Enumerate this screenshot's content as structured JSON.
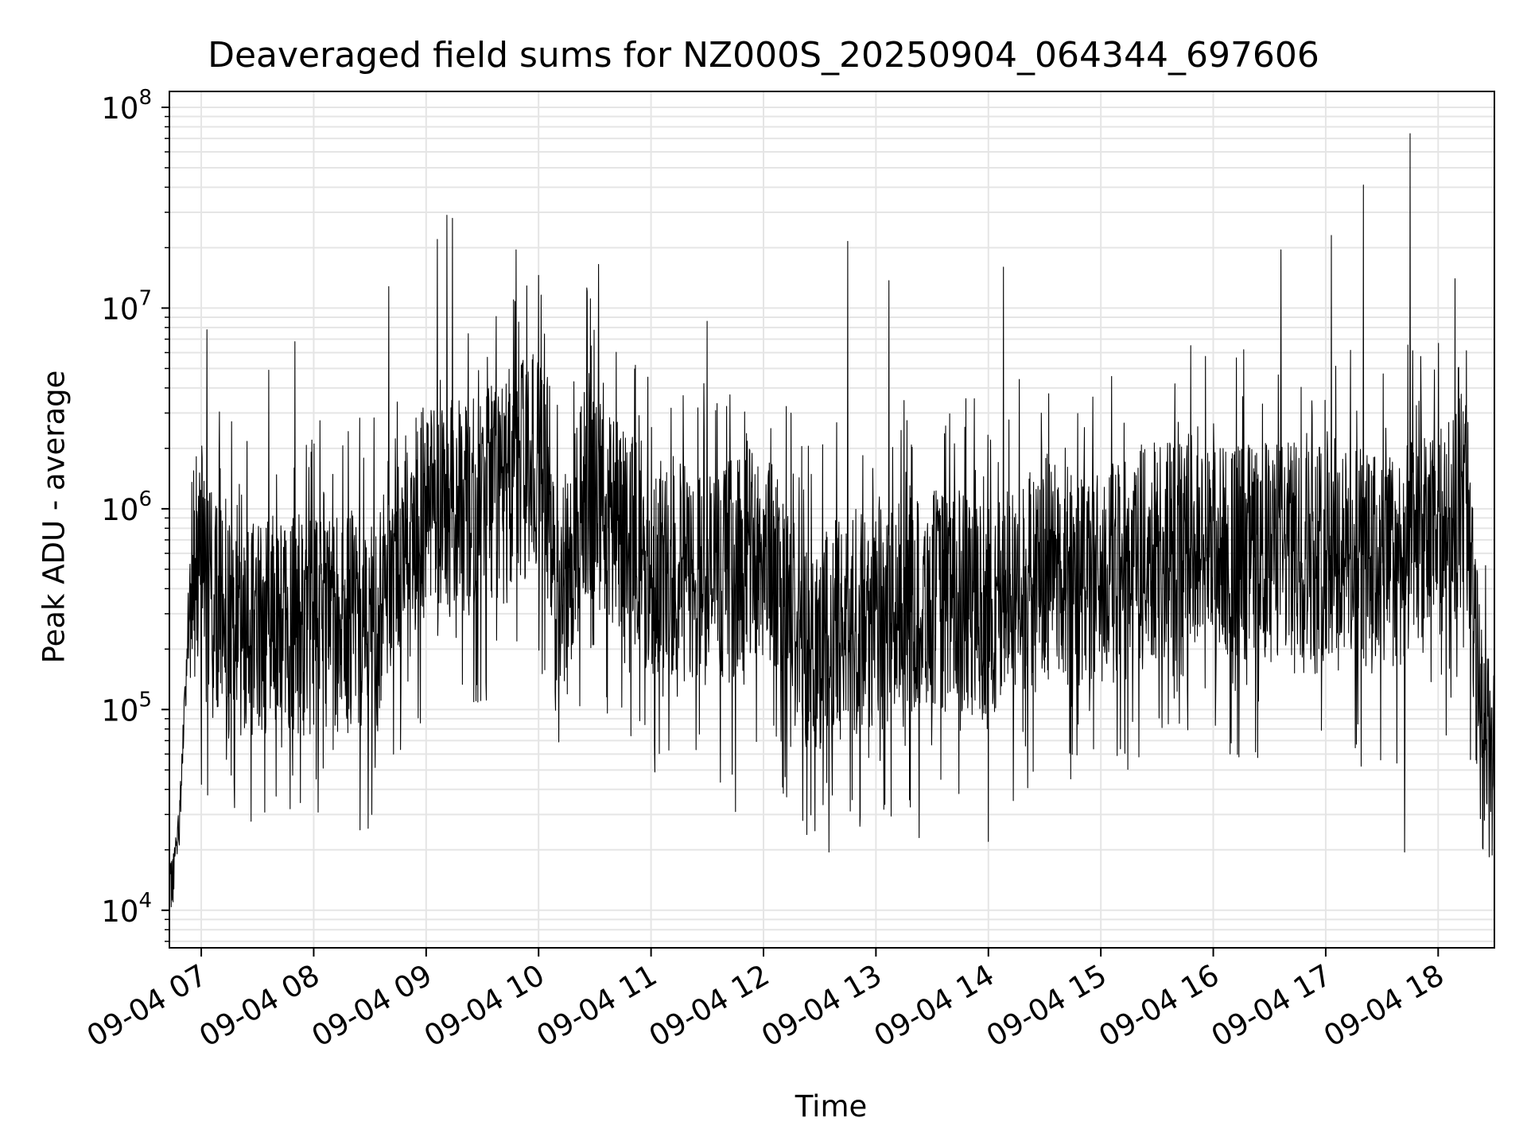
{
  "chart_data": {
    "type": "line",
    "title": "Deaveraged field sums for NZ000S_20250904_064344_697606",
    "xlabel": "Time",
    "ylabel": "Peak ADU - average",
    "yscale": "log",
    "ylim": [
      6500,
      120000000
    ],
    "xlim": [
      "2025-09-04 06:43",
      "2025-09-04 18:30"
    ],
    "grid": true,
    "line_color": "#000000",
    "grid_color": "#e5e5e5",
    "x_ticks": [
      "09-04 07",
      "09-04 08",
      "09-04 09",
      "09-04 10",
      "09-04 11",
      "09-04 12",
      "09-04 13",
      "09-04 14",
      "09-04 15",
      "09-04 16",
      "09-04 17",
      "09-04 18"
    ],
    "y_ticks": [
      {
        "base": "10",
        "exp": "4",
        "value": 10000
      },
      {
        "base": "10",
        "exp": "5",
        "value": 100000
      },
      {
        "base": "10",
        "exp": "6",
        "value": 1000000
      },
      {
        "base": "10",
        "exp": "7",
        "value": 10000000
      },
      {
        "base": "10",
        "exp": "8",
        "value": 100000000
      }
    ],
    "series": [
      {
        "style": "dense noisy line",
        "baseline": [
          {
            "t": "06:43",
            "v": 12000
          },
          {
            "t": "06:48",
            "v": 25000
          },
          {
            "t": "06:52",
            "v": 150000
          },
          {
            "t": "06:55",
            "v": 800000
          },
          {
            "t": "07:00",
            "v": 450000
          },
          {
            "t": "07:15",
            "v": 300000
          },
          {
            "t": "07:30",
            "v": 300000
          },
          {
            "t": "08:00",
            "v": 300000
          },
          {
            "t": "08:30",
            "v": 320000
          },
          {
            "t": "08:50",
            "v": 800000
          },
          {
            "t": "09:00",
            "v": 1100000
          },
          {
            "t": "09:30",
            "v": 1200000
          },
          {
            "t": "09:50",
            "v": 1800000
          },
          {
            "t": "10:05",
            "v": 1800000
          },
          {
            "t": "10:10",
            "v": 400000
          },
          {
            "t": "10:25",
            "v": 1300000
          },
          {
            "t": "10:45",
            "v": 900000
          },
          {
            "t": "11:00",
            "v": 600000
          },
          {
            "t": "11:30",
            "v": 500000
          },
          {
            "t": "12:00",
            "v": 700000
          },
          {
            "t": "12:20",
            "v": 250000
          },
          {
            "t": "12:50",
            "v": 300000
          },
          {
            "t": "13:30",
            "v": 400000
          },
          {
            "t": "14:00",
            "v": 350000
          },
          {
            "t": "14:30",
            "v": 550000
          },
          {
            "t": "15:00",
            "v": 500000
          },
          {
            "t": "15:30",
            "v": 700000
          },
          {
            "t": "16:00",
            "v": 700000
          },
          {
            "t": "16:30",
            "v": 700000
          },
          {
            "t": "17:00",
            "v": 700000
          },
          {
            "t": "17:30",
            "v": 600000
          },
          {
            "t": "18:00",
            "v": 800000
          },
          {
            "t": "18:15",
            "v": 1400000
          },
          {
            "t": "18:20",
            "v": 200000
          },
          {
            "t": "18:25",
            "v": 60000
          }
        ],
        "peaks": [
          {
            "t": "07:03",
            "v": 7800000
          },
          {
            "t": "07:36",
            "v": 4900000
          },
          {
            "t": "07:50",
            "v": 6800000
          },
          {
            "t": "07:59",
            "v": 2200000
          },
          {
            "t": "08:40",
            "v": 12800000
          },
          {
            "t": "09:06",
            "v": 22000000
          },
          {
            "t": "09:11",
            "v": 29000000
          },
          {
            "t": "09:14",
            "v": 28000000
          },
          {
            "t": "09:48",
            "v": 19500000
          },
          {
            "t": "10:32",
            "v": 16500000
          },
          {
            "t": "11:30",
            "v": 8600000
          },
          {
            "t": "12:45",
            "v": 21500000
          },
          {
            "t": "13:07",
            "v": 13700000
          },
          {
            "t": "14:08",
            "v": 16000000
          },
          {
            "t": "15:48",
            "v": 6500000
          },
          {
            "t": "16:36",
            "v": 19500000
          },
          {
            "t": "17:03",
            "v": 23000000
          },
          {
            "t": "17:20",
            "v": 41000000
          },
          {
            "t": "17:45",
            "v": 74000000
          },
          {
            "t": "18:09",
            "v": 14000000
          }
        ],
        "troughs": [
          {
            "t": "06:45",
            "v": 11000
          },
          {
            "t": "07:40",
            "v": 37000
          },
          {
            "t": "08:31",
            "v": 30000
          },
          {
            "t": "11:45",
            "v": 31000
          },
          {
            "t": "12:21",
            "v": 28000
          },
          {
            "t": "12:35",
            "v": 19500
          },
          {
            "t": "13:23",
            "v": 23000
          },
          {
            "t": "14:00",
            "v": 22000
          },
          {
            "t": "17:42",
            "v": 19500
          },
          {
            "t": "18:28",
            "v": 31000
          }
        ]
      }
    ]
  }
}
